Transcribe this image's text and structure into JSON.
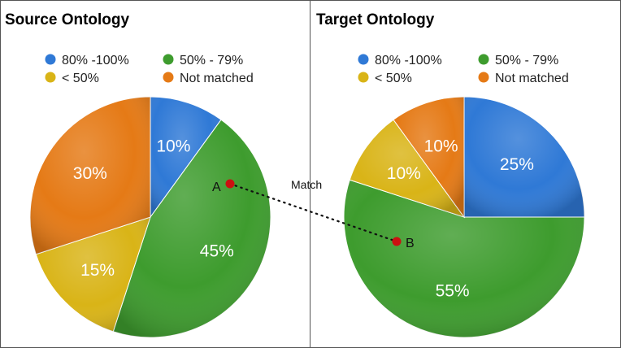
{
  "palette": {
    "80-100": "#2f79d6",
    "50-79": "#3e9c2e",
    "lt50": "#d9b417",
    "not-matched": "#e57a16",
    "point": "#cc1111",
    "border": "#555555"
  },
  "chart_data": [
    {
      "type": "pie",
      "title": "Source Ontology",
      "categories": [
        "80% -100%",
        "50% - 79%",
        "< 50%",
        "Not matched"
      ],
      "values": [
        10,
        45,
        15,
        30
      ],
      "data_labels": [
        "10%",
        "45%",
        "15%",
        "30%"
      ],
      "colors": [
        "#2f79d6",
        "#3e9c2e",
        "#d9b417",
        "#e57a16"
      ],
      "legend": "top",
      "start": "12 o'clock, clockwise"
    },
    {
      "type": "pie",
      "title": "Target Ontology",
      "categories": [
        "80% -100%",
        "50% - 79%",
        "< 50%",
        "Not matched"
      ],
      "values": [
        25,
        55,
        10,
        10
      ],
      "data_labels": [
        "25%",
        "55%",
        "10%",
        "10%"
      ],
      "colors": [
        "#2f79d6",
        "#3e9c2e",
        "#d9b417",
        "#e57a16"
      ],
      "legend": "top",
      "start": "12 o'clock, clockwise"
    }
  ],
  "annotations": {
    "point_a": "A",
    "point_b": "B",
    "match": "Match"
  }
}
